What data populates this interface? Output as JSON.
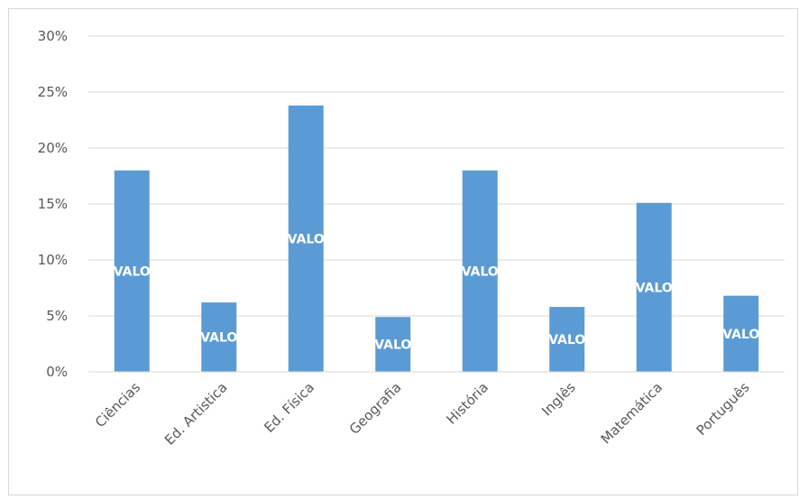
{
  "chart_data": {
    "type": "bar",
    "title": "",
    "xlabel": "",
    "ylabel": "",
    "categories": [
      "Ciências",
      "Ed. Artistica",
      "Ed. Física",
      "Geografia",
      "História",
      "Inglês",
      "Matemática",
      "Português"
    ],
    "values": [
      0.18,
      0.062,
      0.238,
      0.049,
      0.18,
      0.058,
      0.151,
      0.068
    ],
    "data_labels": [
      "VALO",
      "VALO",
      "VALO",
      "VALO",
      "VALO",
      "VALO",
      "VALO",
      "VALO"
    ],
    "ylim": [
      0,
      0.3
    ],
    "yticks": [
      "0%",
      "5%",
      "10%",
      "15%",
      "20%",
      "25%",
      "30%"
    ],
    "grid": true,
    "legend": "none",
    "colors": {
      "bar": "#5b9bd5",
      "grid": "#d9d9d9",
      "axis": "#d9d9d9",
      "text": "#595959",
      "data_label": "#ffffff"
    }
  }
}
